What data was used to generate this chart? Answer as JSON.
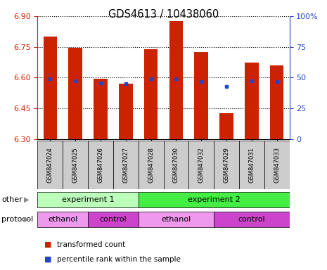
{
  "title": "GDS4613 / 10438060",
  "samples": [
    "GSM847024",
    "GSM847025",
    "GSM847026",
    "GSM847027",
    "GSM847028",
    "GSM847030",
    "GSM847032",
    "GSM847029",
    "GSM847031",
    "GSM847033"
  ],
  "bar_bottom": 6.3,
  "bar_tops": [
    6.8,
    6.745,
    6.595,
    6.572,
    6.74,
    6.875,
    6.725,
    6.425,
    6.675,
    6.66
  ],
  "blue_y": [
    6.593,
    6.585,
    6.575,
    6.57,
    6.595,
    6.593,
    6.58,
    6.558,
    6.585,
    6.582
  ],
  "ylim": [
    6.3,
    6.9
  ],
  "yticks_left": [
    6.3,
    6.45,
    6.6,
    6.75,
    6.9
  ],
  "yticks_right_vals": [
    0,
    25,
    50,
    75,
    100
  ],
  "yticks_right_labels": [
    "0",
    "25",
    "50",
    "75",
    "100%"
  ],
  "bar_color": "#cc2200",
  "blue_color": "#2244cc",
  "bar_width": 0.55,
  "grid_color": "#000000",
  "experiment1_color": "#bbffbb",
  "experiment2_color": "#44ee44",
  "ethanol_color": "#ee99ee",
  "control_color": "#cc44cc",
  "sample_bg_color": "#cccccc",
  "other_label": "other",
  "protocol_label": "protocol",
  "exp1_label": "experiment 1",
  "exp2_label": "experiment 2",
  "ethanol_label": "ethanol",
  "control_label": "control",
  "legend_red": "transformed count",
  "legend_blue": "percentile rank within the sample",
  "experiment1_cols": [
    0,
    1,
    2,
    3
  ],
  "experiment2_cols": [
    4,
    5,
    6,
    7,
    8,
    9
  ],
  "ethanol1_cols": [
    0,
    1
  ],
  "control1_cols": [
    2,
    3
  ],
  "ethanol2_cols": [
    4,
    5,
    6
  ],
  "control2_cols": [
    7,
    8,
    9
  ]
}
